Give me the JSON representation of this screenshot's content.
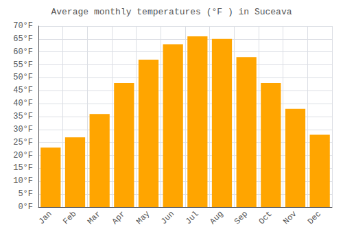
{
  "chart_data": {
    "type": "bar",
    "title": "Average monthly temperatures (°F ) in Suceava",
    "categories": [
      "Jan",
      "Feb",
      "Mar",
      "Apr",
      "May",
      "Jun",
      "Jul",
      "Aug",
      "Sep",
      "Oct",
      "Nov",
      "Dec"
    ],
    "values": [
      23,
      27,
      36,
      48,
      57,
      63,
      66,
      65,
      58,
      48,
      38,
      28
    ],
    "color": "#FFA500",
    "ylim": [
      0,
      70
    ],
    "yticks": [
      {
        "value": 0,
        "label": "0°F"
      },
      {
        "value": 5,
        "label": "5°F"
      },
      {
        "value": 10,
        "label": "10°F"
      },
      {
        "value": 15,
        "label": "15°F"
      },
      {
        "value": 20,
        "label": "20°F"
      },
      {
        "value": 25,
        "label": "25°F"
      },
      {
        "value": 30,
        "label": "30°F"
      },
      {
        "value": 35,
        "label": "35°F"
      },
      {
        "value": 40,
        "label": "40°F"
      },
      {
        "value": 45,
        "label": "45°F"
      },
      {
        "value": 50,
        "label": "50°F"
      },
      {
        "value": 55,
        "label": "55°F"
      },
      {
        "value": 60,
        "label": "60°F"
      },
      {
        "value": 65,
        "label": "65°F"
      },
      {
        "value": 70,
        "label": "70°F"
      }
    ],
    "grid": true
  }
}
